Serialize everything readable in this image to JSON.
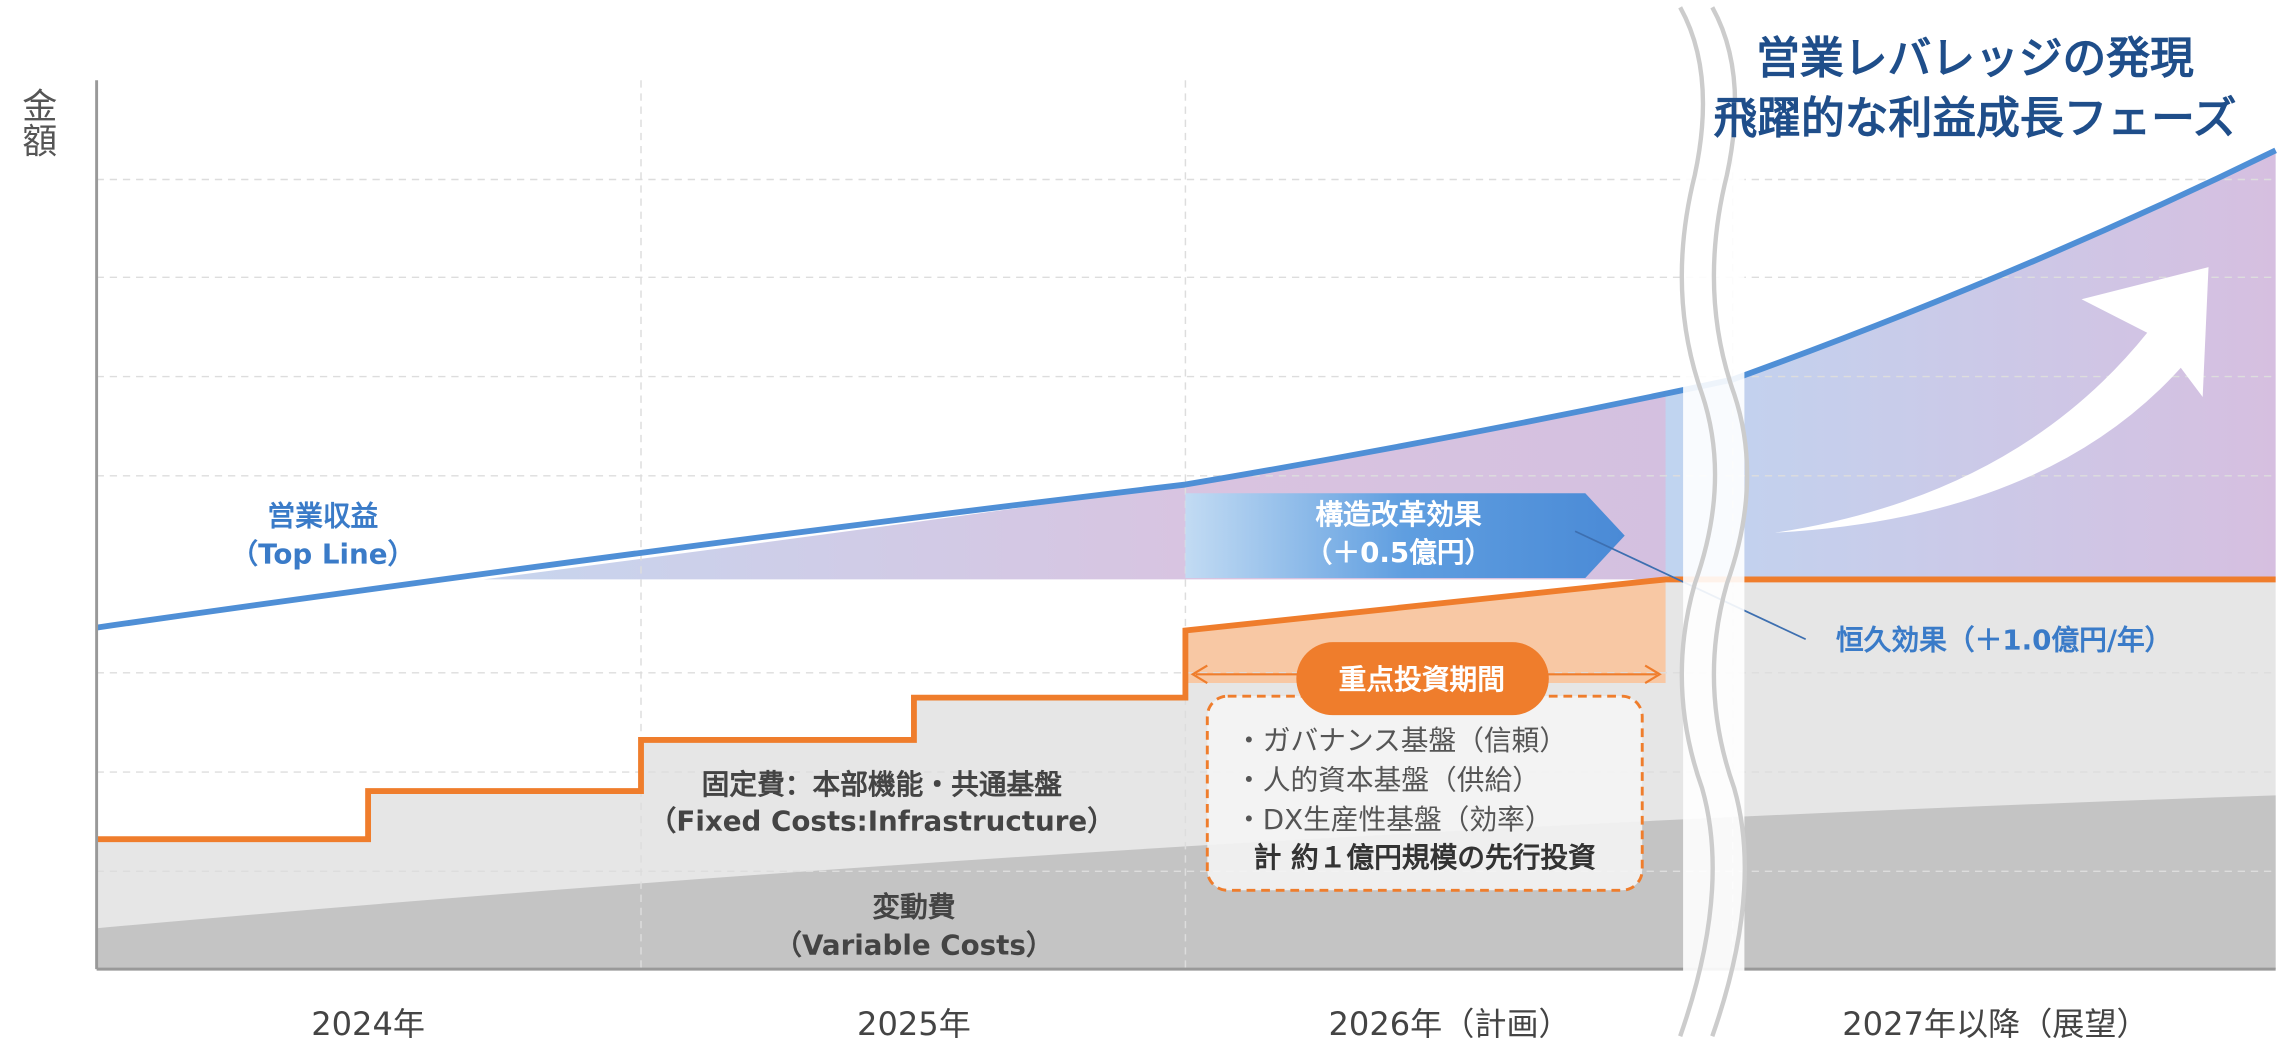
{
  "axis_label": "金額",
  "title": [
    "営業レバレッジの発現",
    "飛躍的な利益成長フェーズ"
  ],
  "periods": [
    "2024年",
    "2025年",
    "2026年（計画）",
    "2027年以降（展望）"
  ],
  "revenue_label": [
    "営業収益",
    "（Top Line）"
  ],
  "fixed_costs_label": [
    "固定費：本部機能・共通基盤",
    "（Fixed Costs:Infrastructure）"
  ],
  "variable_costs_label": [
    "変動費",
    "（Variable Costs）"
  ],
  "structural_effect": [
    "構造改革効果",
    "（＋0.5億円）"
  ],
  "permanent_effect": "恒久効果（＋1.0億円/年）",
  "investment": {
    "badge": "重点投資期間",
    "items": [
      "・ガバナンス基盤（信頼）",
      "・人的資本基盤（供給）",
      "・DX生産性基盤（効率）"
    ],
    "total": "計 約１億円規模の先行投資"
  }
}
